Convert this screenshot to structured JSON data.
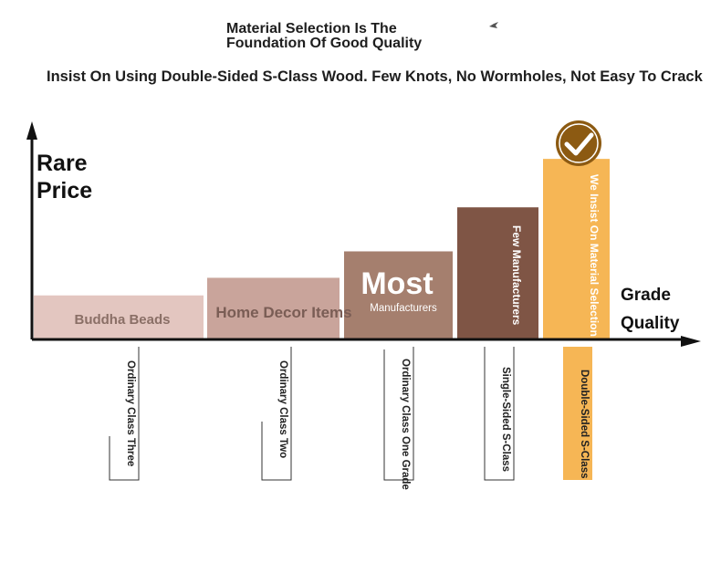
{
  "header": {
    "title_line1": "Material Selection Is The",
    "title_line2": "Foundation Of Good Quality",
    "subtitle": "Insist On Using Double-Sided S-Class Wood. Few Knots, No Wormholes, Not Easy To Crack"
  },
  "chart_data": {
    "type": "bar",
    "ylabel_line1": "Rare",
    "ylabel_line2": "Price",
    "xlabel_line1": "Grade",
    "xlabel_line2": "Quality",
    "categories": [
      "Ordinary Class Three",
      "Ordinary Class Two",
      "Ordinary Class One Grade",
      "Single-Sided S-Class",
      "Double-Sided S-Class"
    ],
    "bar_labels": [
      "Buddha Beads",
      "Home Decor Items",
      "Most Manufacturers",
      "Few Manufacturers",
      "We Insist On Material Selection"
    ],
    "values": [
      1,
      1.4,
      2,
      3,
      4.1
    ],
    "ylim": [
      0,
      4.6
    ],
    "colors": [
      "#e3c6c0",
      "#c9a49b",
      "#a57f6e",
      "#7f5545",
      "#f6b655"
    ],
    "selected_index": 4,
    "check_icon": "check-circle-icon"
  }
}
